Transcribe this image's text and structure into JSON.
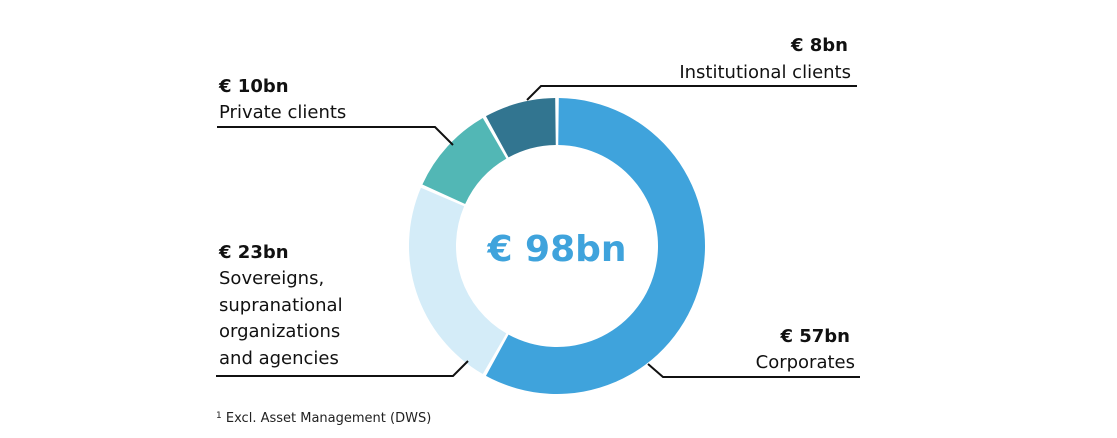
{
  "chart_data": {
    "type": "donut",
    "unit": "€ bn",
    "total_label": "€ 98bn",
    "total_value": 98,
    "slices": [
      {
        "name": "Corporates",
        "value": 57,
        "value_label": "€ 57bn",
        "label_lines": [
          "Corporates"
        ],
        "color": "#3fa3dc"
      },
      {
        "name": "Sovereigns, supranational organizations and agencies",
        "value": 23,
        "value_label": "€ 23bn",
        "label_lines": [
          "Sovereigns,",
          "supranational",
          "organizations",
          "and agencies"
        ],
        "color": "#d4ecf8"
      },
      {
        "name": "Private clients",
        "value": 10,
        "value_label": "€ 10bn",
        "label_lines": [
          "Private clients"
        ],
        "color": "#52b7b5"
      },
      {
        "name": "Institutional clients",
        "value": 8,
        "value_label": "€ 8bn",
        "label_lines": [
          "Institutional clients"
        ],
        "color": "#327590"
      }
    ],
    "center_color": "#3fa3dc"
  },
  "footnote": {
    "marker": "1",
    "text": "Excl. Asset Management (DWS)"
  }
}
